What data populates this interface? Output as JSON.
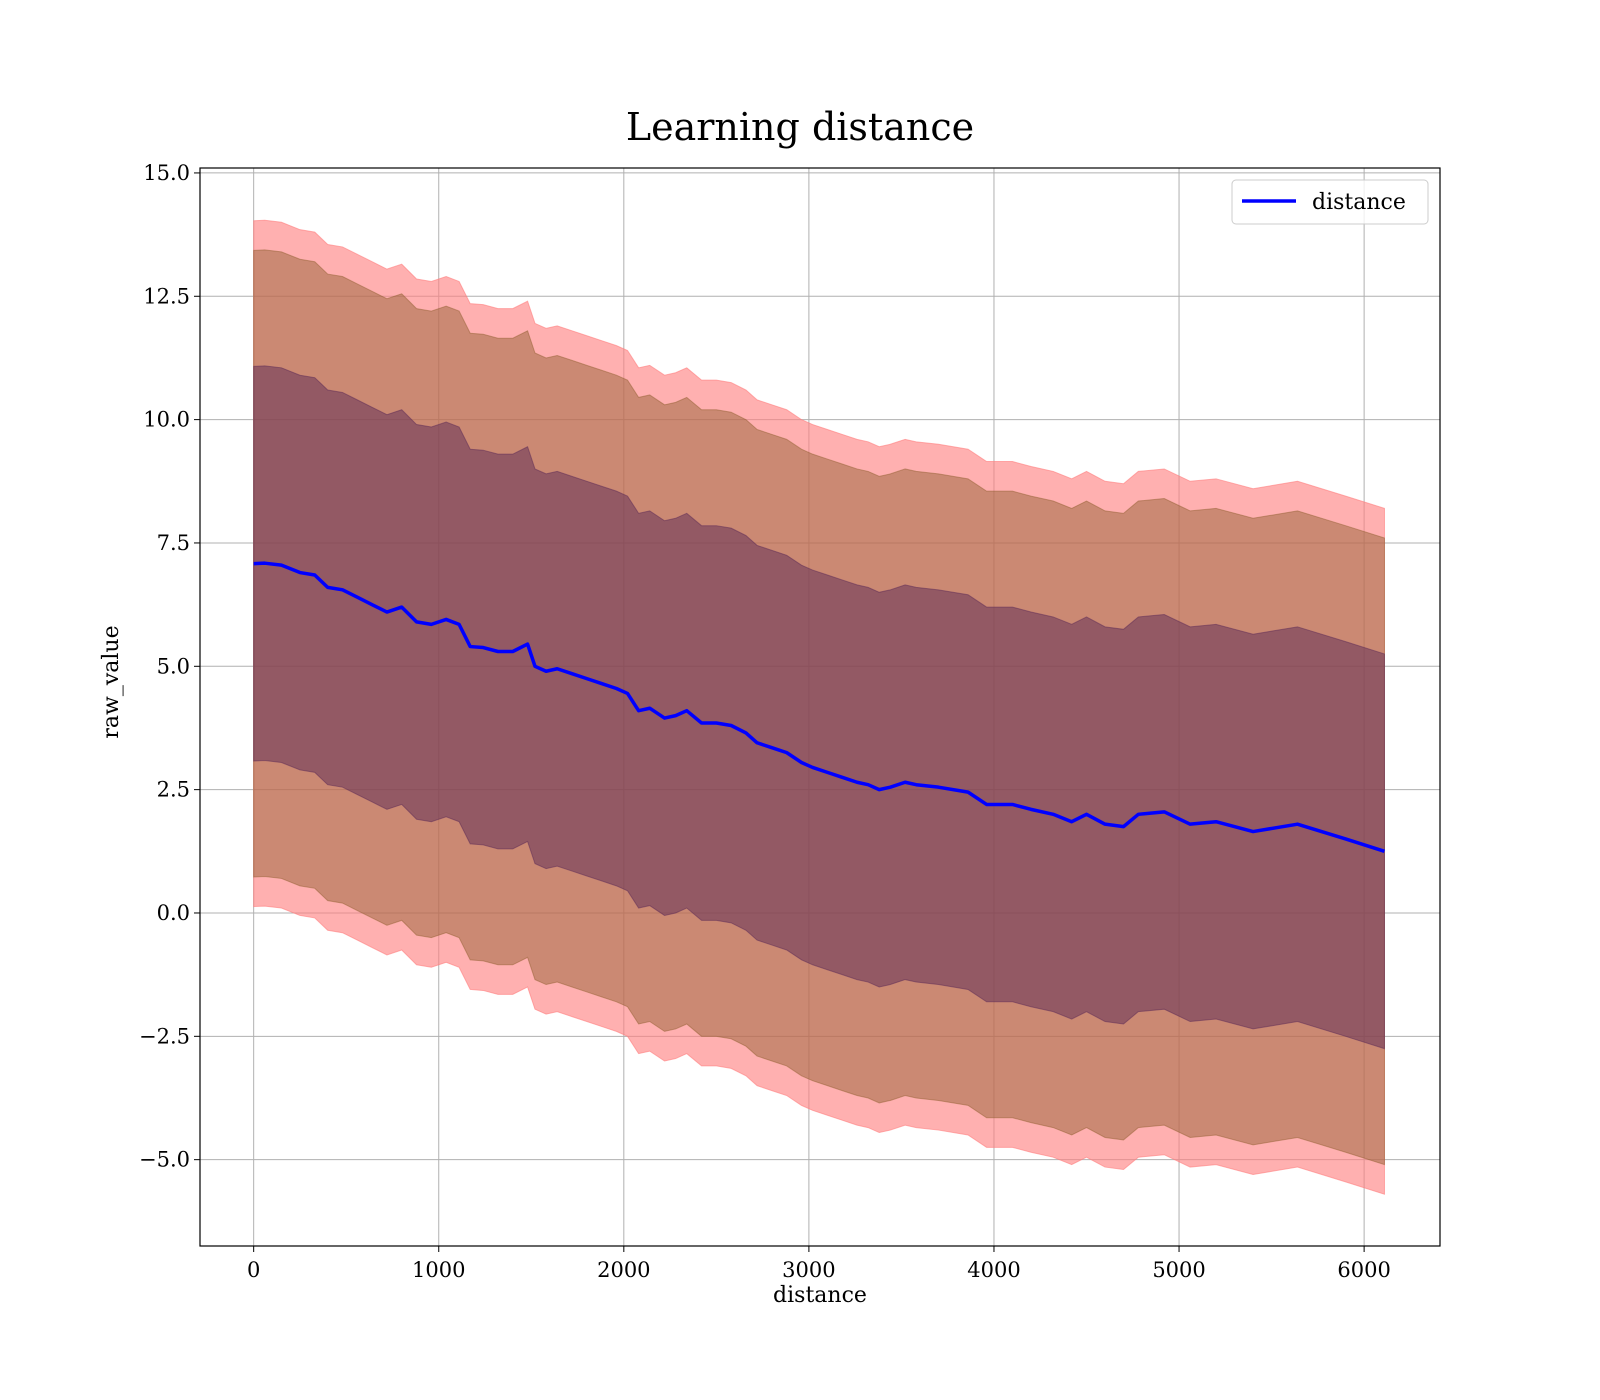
{
  "chart_data": {
    "type": "line",
    "title": "Learning distance",
    "xlabel": "distance",
    "ylabel": "raw_value",
    "xlim": [
      -290,
      6410
    ],
    "ylim": [
      -6.75,
      15.1
    ],
    "x_ticks": [
      0,
      1000,
      2000,
      3000,
      4000,
      5000,
      6000
    ],
    "x_tick_labels": [
      "0",
      "1000",
      "2000",
      "3000",
      "4000",
      "5000",
      "6000"
    ],
    "y_ticks": [
      -5.0,
      -2.5,
      0.0,
      2.5,
      5.0,
      7.5,
      10.0,
      12.5,
      15.0
    ],
    "y_tick_labels": [
      "−5.0",
      "−2.5",
      "0.0",
      "2.5",
      "5.0",
      "7.5",
      "10.0",
      "12.5",
      "15.0"
    ],
    "grid": true,
    "legend": {
      "entries": [
        "distance"
      ],
      "placement": "top-right"
    },
    "series": [
      {
        "name": "distance",
        "color": "#0000ff",
        "x": [
          0,
          60,
          150,
          250,
          330,
          400,
          480,
          560,
          640,
          720,
          800,
          880,
          960,
          1040,
          1110,
          1170,
          1240,
          1320,
          1400,
          1480,
          1520,
          1580,
          1640,
          1720,
          1800,
          1880,
          1960,
          2020,
          2080,
          2140,
          2220,
          2280,
          2340,
          2420,
          2500,
          2580,
          2660,
          2720,
          2800,
          2880,
          2960,
          3020,
          3100,
          3180,
          3260,
          3320,
          3380,
          3440,
          3520,
          3580,
          3700,
          3860,
          3960,
          4100,
          4200,
          4320,
          4420,
          4500,
          4600,
          4700,
          4780,
          4920,
          5060,
          5200,
          5400,
          5640,
          5900,
          6110
        ],
        "y": [
          7.08,
          7.09,
          7.05,
          6.9,
          6.85,
          6.6,
          6.55,
          6.4,
          6.25,
          6.1,
          6.2,
          5.9,
          5.85,
          5.95,
          5.85,
          5.4,
          5.38,
          5.3,
          5.3,
          5.45,
          5.0,
          4.9,
          4.95,
          4.85,
          4.75,
          4.65,
          4.55,
          4.45,
          4.1,
          4.15,
          3.95,
          4.0,
          4.1,
          3.85,
          3.85,
          3.8,
          3.65,
          3.45,
          3.35,
          3.25,
          3.05,
          2.95,
          2.85,
          2.75,
          2.65,
          2.6,
          2.5,
          2.55,
          2.65,
          2.6,
          2.55,
          2.45,
          2.2,
          2.2,
          2.1,
          2.0,
          1.85,
          2.0,
          1.8,
          1.75,
          2.0,
          2.05,
          1.8,
          1.85,
          1.65,
          1.8,
          1.5,
          1.25
        ]
      }
    ],
    "bands": [
      {
        "label": "",
        "color": "#ff7f7f",
        "opacity": 0.62,
        "offset_low": -6.95,
        "offset_high": 6.95
      },
      {
        "label": "",
        "color": "#8b5a2b",
        "opacity": 0.45,
        "offset_low": -6.35,
        "offset_high": 6.35
      },
      {
        "label": "",
        "color": "#5c2a55",
        "opacity": 0.5,
        "offset_low": -4.0,
        "offset_high": 4.0
      }
    ]
  }
}
